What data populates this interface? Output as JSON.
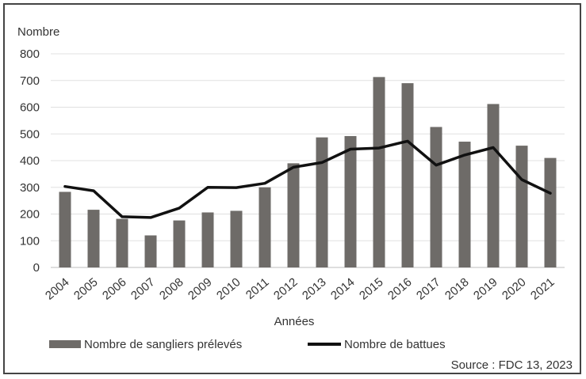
{
  "chart_data": {
    "type": "bar",
    "ylabel": "Nombre",
    "xlabel": "Années",
    "ylim": [
      0,
      800
    ],
    "yticks": [
      0,
      100,
      200,
      300,
      400,
      500,
      600,
      700,
      800
    ],
    "categories": [
      "2004",
      "2005",
      "2006",
      "2007",
      "2008",
      "2009",
      "2010",
      "2011",
      "2012",
      "2013",
      "2014",
      "2015",
      "2016",
      "2017",
      "2018",
      "2019",
      "2020",
      "2021"
    ],
    "series": [
      {
        "name": "Nombre de sangliers prélevés",
        "type": "bar",
        "color": "#6e6b68",
        "values": [
          283,
          216,
          182,
          120,
          176,
          206,
          212,
          300,
          390,
          487,
          492,
          713,
          690,
          526,
          471,
          612,
          456,
          410
        ]
      },
      {
        "name": "Nombre de battues",
        "type": "line",
        "color": "#111111",
        "values": [
          303,
          287,
          190,
          187,
          222,
          300,
          299,
          315,
          375,
          393,
          443,
          447,
          473,
          383,
          421,
          449,
          329,
          278
        ]
      }
    ],
    "legend_position": "bottom",
    "grid": true,
    "source": "Source : FDC 13, 2023"
  }
}
